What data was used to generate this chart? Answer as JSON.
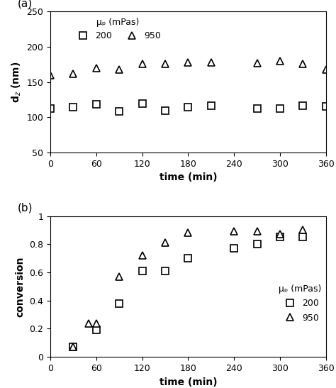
{
  "panel_a": {
    "xlabel": "time (min)",
    "ylabel": "d$_z$ (nm)",
    "xlim": [
      0,
      360
    ],
    "ylim": [
      50,
      250
    ],
    "yticks": [
      50,
      100,
      150,
      200,
      250
    ],
    "xticks": [
      0,
      60,
      120,
      180,
      240,
      300,
      360
    ],
    "series_200": {
      "x": [
        0,
        30,
        60,
        90,
        120,
        150,
        180,
        210,
        270,
        300,
        330,
        360
      ],
      "y": [
        113,
        115,
        119,
        108,
        120,
        110,
        115,
        117,
        113,
        113,
        117,
        116
      ],
      "marker": "s",
      "label": "200"
    },
    "series_950": {
      "x": [
        0,
        30,
        60,
        90,
        120,
        150,
        180,
        210,
        270,
        300,
        330,
        360
      ],
      "y": [
        160,
        162,
        170,
        168,
        176,
        176,
        178,
        178,
        177,
        180,
        176,
        168
      ],
      "marker": "^",
      "label": "950"
    },
    "legend_title": "μₚ (mPas)"
  },
  "panel_b": {
    "xlabel": "time (min)",
    "ylabel": "conversion",
    "xlim": [
      0,
      360
    ],
    "ylim": [
      0,
      1
    ],
    "yticks": [
      0,
      0.2,
      0.4,
      0.6,
      0.8,
      1.0
    ],
    "xticks": [
      0,
      60,
      120,
      180,
      240,
      300,
      360
    ],
    "series_200": {
      "x": [
        30,
        60,
        90,
        120,
        150,
        180,
        240,
        270,
        300,
        330
      ],
      "y": [
        0.07,
        0.19,
        0.38,
        0.61,
        0.61,
        0.7,
        0.77,
        0.8,
        0.85,
        0.85
      ],
      "marker": "s",
      "label": "200"
    },
    "series_950": {
      "x": [
        30,
        50,
        60,
        90,
        120,
        150,
        180,
        240,
        270,
        300,
        330
      ],
      "y": [
        0.07,
        0.24,
        0.24,
        0.57,
        0.72,
        0.81,
        0.88,
        0.89,
        0.89,
        0.87,
        0.9
      ],
      "marker": "^",
      "label": "950"
    },
    "legend_title": "μₚ (mPas)"
  },
  "marker_size": 7,
  "marker_facecolor": "white",
  "marker_edgecolor": "black",
  "marker_edgewidth": 1.2,
  "fontsize_label": 10,
  "fontsize_tick": 9,
  "fontsize_legend": 9,
  "fontsize_panel_label": 11
}
